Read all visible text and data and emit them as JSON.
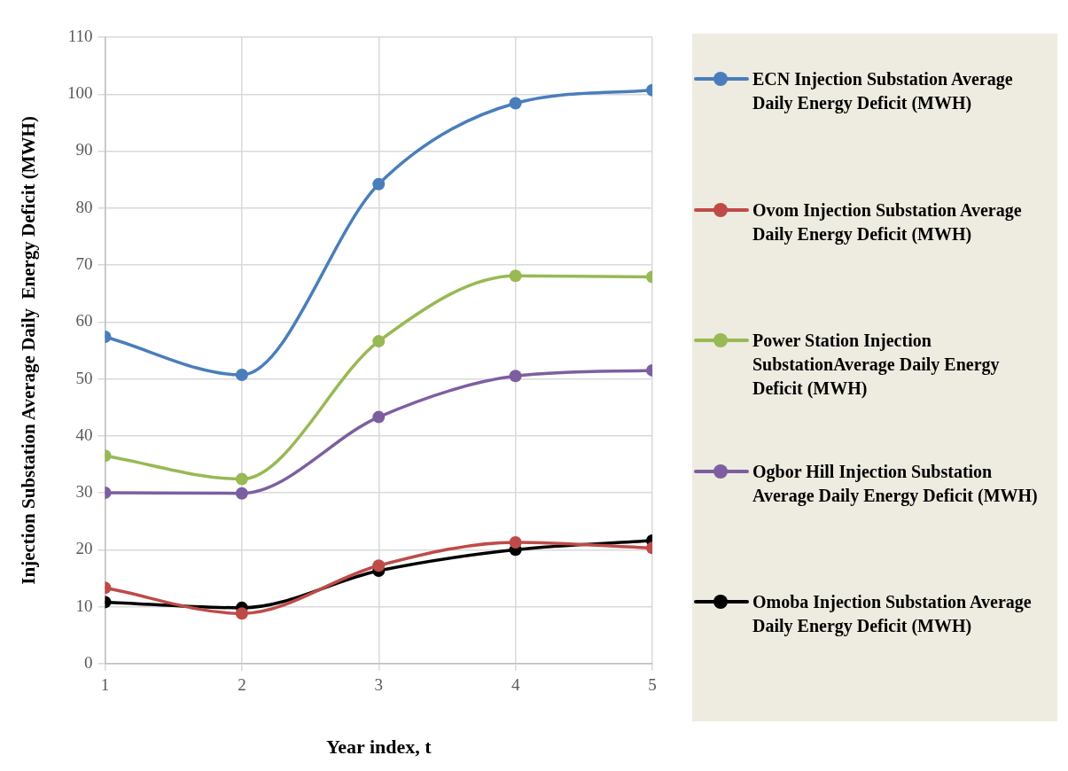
{
  "chart_data": {
    "type": "line",
    "xlabel": "Year index, t",
    "ylabel": "Injection Substation Average Daily  Energy Deficit (MWH)",
    "x": [
      1,
      2,
      3,
      4,
      5
    ],
    "xlim": [
      1,
      5
    ],
    "xticks": [
      1,
      2,
      3,
      4,
      5
    ],
    "ylim": [
      0,
      110
    ],
    "yticks": [
      0,
      10,
      20,
      30,
      40,
      50,
      60,
      70,
      80,
      90,
      100,
      110
    ],
    "grid": true,
    "legend": "right",
    "marker": "circle",
    "line_style": "solid",
    "series": [
      {
        "name": "ECN Injection Substation Average Daily Energy Deficit (MWH)",
        "color": "#4a7ebb",
        "values": [
          57.4,
          50.7,
          84.2,
          98.4,
          100.7
        ]
      },
      {
        "name": "Ovom Injection Substation Average Daily Energy Deficit (MWH)",
        "color": "#be4b48",
        "values": [
          13.3,
          8.8,
          17.2,
          21.3,
          20.3
        ]
      },
      {
        "name": "Power Station  Injection SubstationAverage Daily Energy Deficit (MWH)",
        "color": "#98b954",
        "values": [
          36.5,
          32.4,
          56.6,
          68.1,
          67.9
        ]
      },
      {
        "name": "Ogbor Hill Injection Substation Average Daily Energy Deficit (MWH)",
        "color": "#7d5fa0",
        "values": [
          30.0,
          29.9,
          43.3,
          50.5,
          51.5
        ]
      },
      {
        "name": "Omoba Injection Substation Average Daily Energy Deficit (MWH)",
        "color": "#000000",
        "values": [
          10.8,
          9.8,
          16.3,
          20.0,
          21.6
        ]
      }
    ]
  }
}
